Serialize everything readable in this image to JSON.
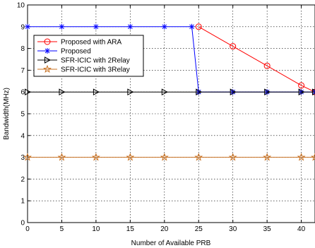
{
  "chart_data": {
    "type": "line",
    "title": "",
    "xlabel": "Number of Available PRB",
    "ylabel": "Bandwidth(MHz)",
    "xlim": [
      0,
      42
    ],
    "ylim": [
      0,
      10
    ],
    "xticks": [
      0,
      5,
      10,
      15,
      20,
      25,
      30,
      35,
      40
    ],
    "yticks": [
      0,
      1,
      2,
      3,
      4,
      5,
      6,
      7,
      8,
      9,
      10
    ],
    "grid": true,
    "grid_style": "dotted",
    "legend_position": "upper-left",
    "series": [
      {
        "name": "Proposed with ARA",
        "color": "#ff0000",
        "marker": "circle",
        "x": [
          25,
          30,
          35,
          40,
          42
        ],
        "y": [
          9,
          8.1,
          7.2,
          6.3,
          6
        ]
      },
      {
        "name": "Proposed",
        "color": "#0000ff",
        "marker": "star",
        "x": [
          0,
          5,
          10,
          15,
          20,
          24,
          25,
          30,
          35,
          40,
          42
        ],
        "y": [
          9,
          9,
          9,
          9,
          9,
          9,
          6,
          6,
          6,
          6,
          6
        ]
      },
      {
        "name": "SFR-ICIC with 2Relay",
        "color": "#000000",
        "marker": "triangle-right",
        "x": [
          0,
          5,
          10,
          15,
          20,
          25,
          30,
          35,
          40,
          42
        ],
        "y": [
          6,
          6,
          6,
          6,
          6,
          6,
          6,
          6,
          6,
          6
        ]
      },
      {
        "name": "SFR-ICIC with 3Relay",
        "color": "#c87020",
        "marker": "pentagram",
        "x": [
          0,
          5,
          10,
          15,
          20,
          25,
          30,
          35,
          40,
          42
        ],
        "y": [
          3,
          3,
          3,
          3,
          3,
          3,
          3,
          3,
          3,
          3
        ]
      }
    ]
  }
}
